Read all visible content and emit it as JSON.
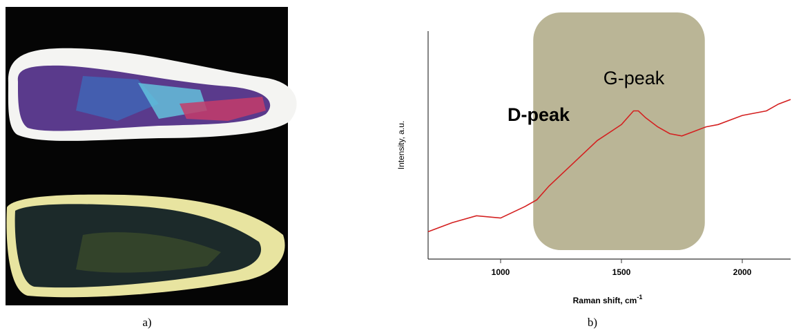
{
  "chart_data": {
    "type": "line",
    "xlabel": "Raman shift, cm",
    "xlabel_sup": "-1",
    "ylabel": "Intensity, a.u.",
    "x": [
      700,
      800,
      900,
      1000,
      1100,
      1150,
      1200,
      1300,
      1400,
      1500,
      1550,
      1570,
      1600,
      1650,
      1700,
      1750,
      1800,
      1850,
      1900,
      2000,
      2100,
      2150,
      2200
    ],
    "series": [
      {
        "color": "#d42020",
        "values": [
          12,
          16,
          19,
          18,
          23,
          26,
          32,
          42,
          52,
          59,
          65,
          65,
          62,
          58,
          55,
          54,
          56,
          58,
          59,
          63,
          65,
          68,
          70
        ]
      }
    ],
    "xlim": [
      700,
      2200
    ],
    "xticks": [
      1000,
      1500,
      2000
    ],
    "ylim": [
      0,
      100
    ],
    "highlight_range": [
      1135,
      1845
    ],
    "highlight_color": "#bab596",
    "annotations": [
      "G-peak",
      "D-peak"
    ]
  },
  "panel_labels": [
    "a)",
    "b)"
  ]
}
